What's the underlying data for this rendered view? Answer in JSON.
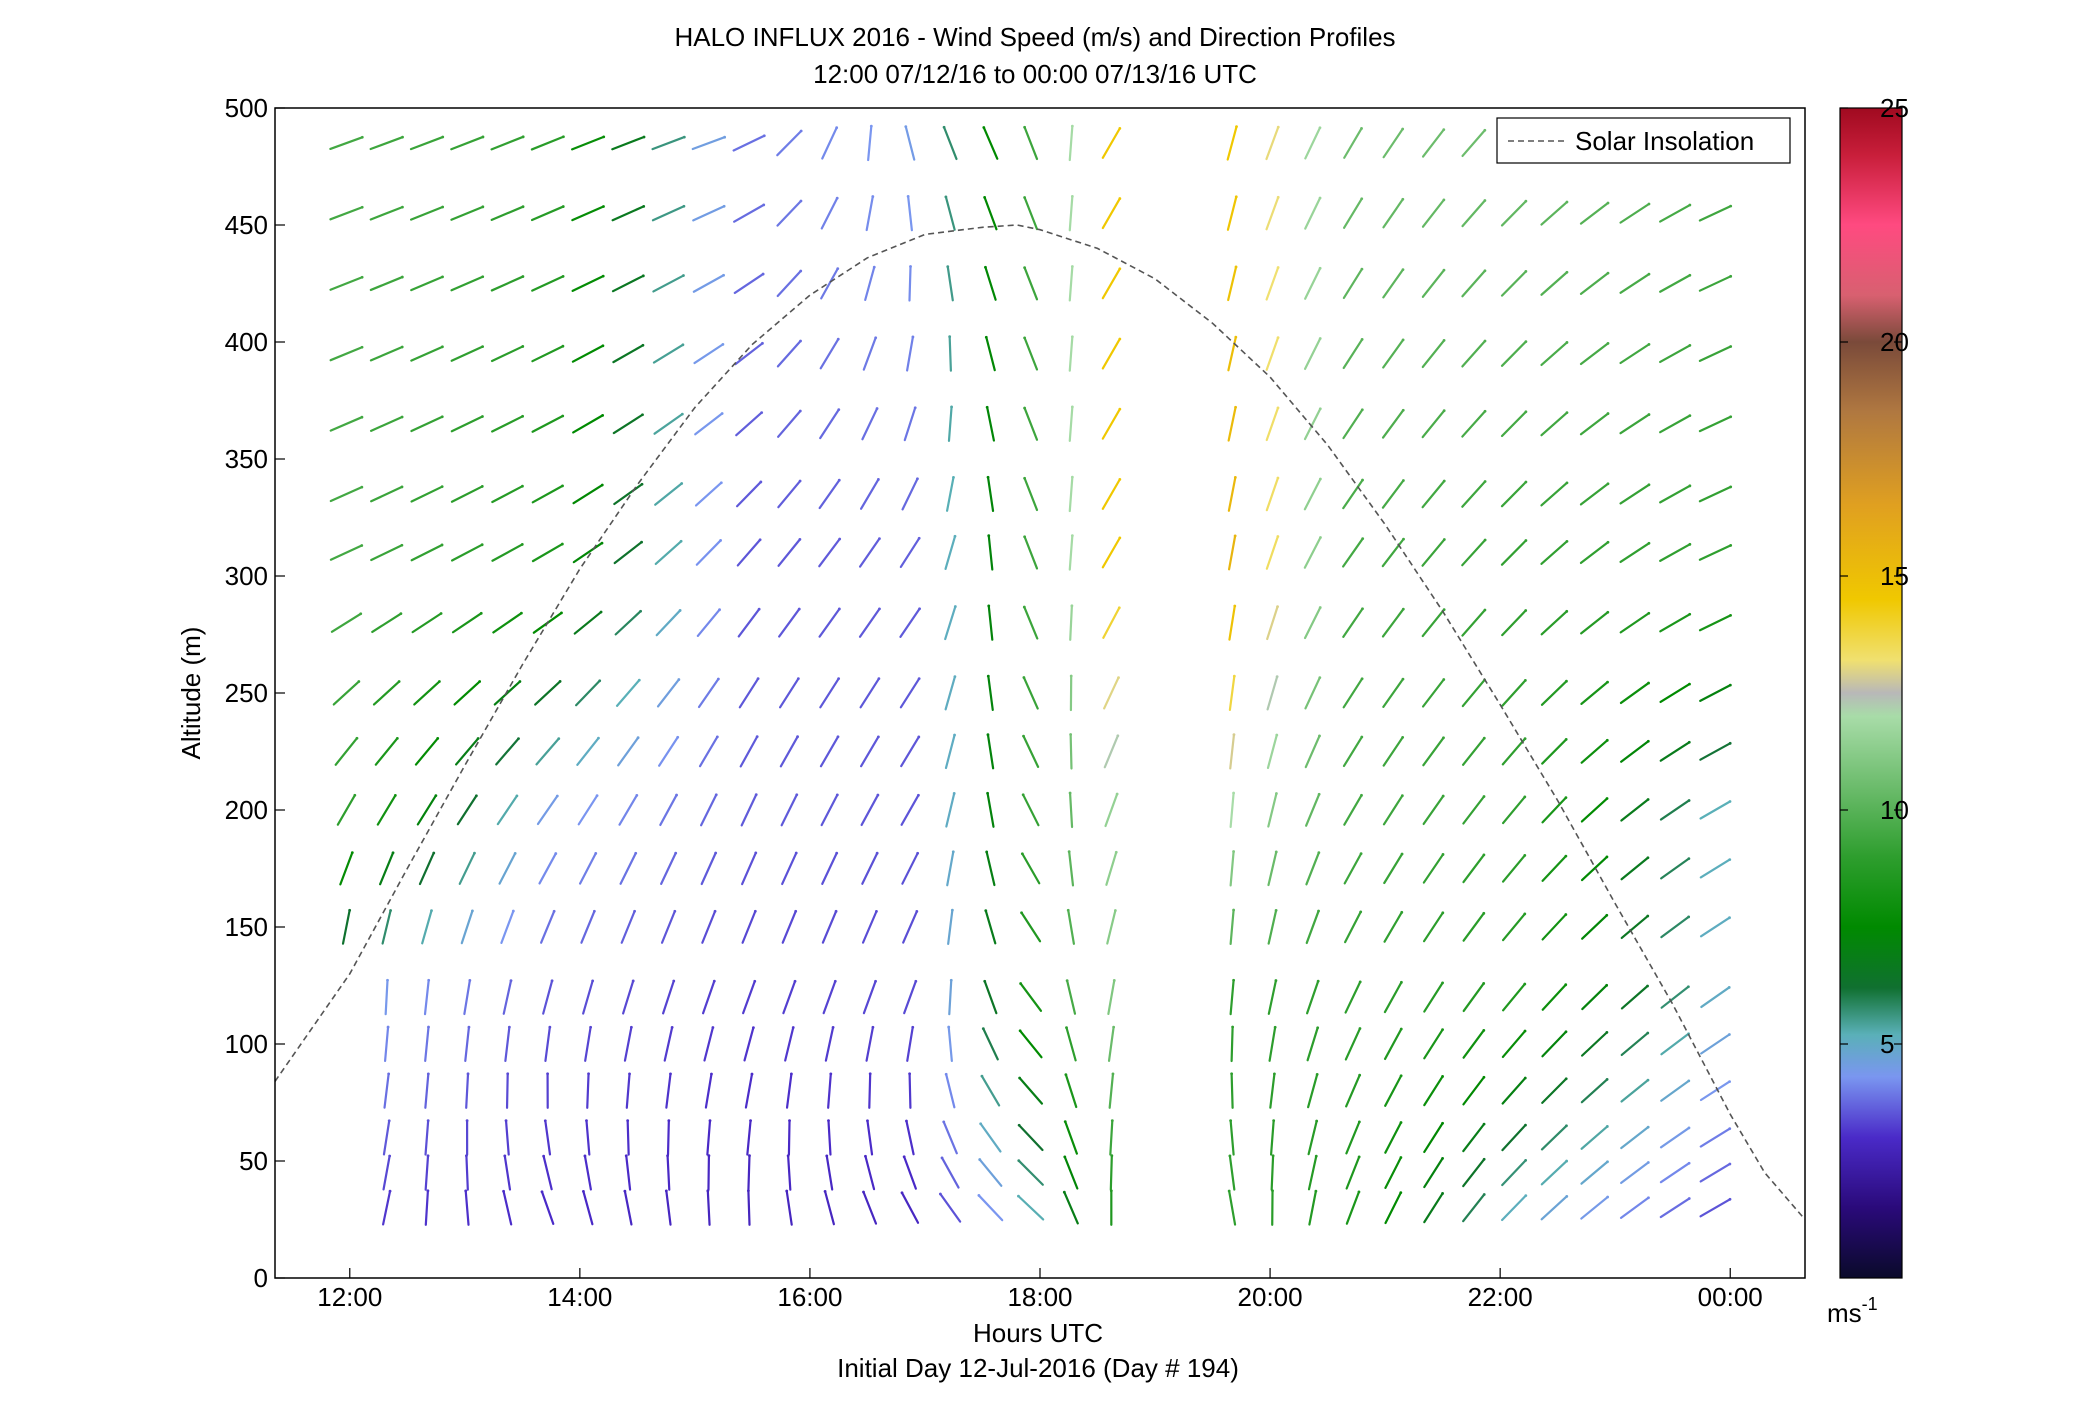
{
  "chart_data": {
    "type": "quiver",
    "title": "HALO INFLUX 2016 - Wind Speed (m/s) and Direction Profiles",
    "subtitle": "12:00 07/12/16 to 00:00 07/13/16  UTC",
    "xlabel": "Hours UTC",
    "xlabel2": "Initial Day 12-Jul-2016 (Day # 194)",
    "ylabel": "Altitude (m)",
    "xlim": [
      11.35,
      24.65
    ],
    "ylim": [
      0,
      500
    ],
    "xticks": [
      12,
      14,
      16,
      18,
      20,
      22,
      24
    ],
    "xtick_labels": [
      "12:00",
      "14:00",
      "16:00",
      "18:00",
      "20:00",
      "22:00",
      "00:00"
    ],
    "yticks": [
      0,
      50,
      100,
      150,
      200,
      250,
      300,
      350,
      400,
      450,
      500
    ],
    "ytick_labels": [
      "0",
      "50",
      "100",
      "150",
      "200",
      "250",
      "300",
      "350",
      "400",
      "450",
      "500"
    ],
    "grid": false,
    "legend": {
      "location": "top-right",
      "entries": [
        "Solar Insolation"
      ]
    },
    "colorbar": {
      "range": [
        0,
        25
      ],
      "ticks": [
        5,
        10,
        15,
        20,
        25
      ],
      "tick_labels": [
        "5",
        "10",
        "15",
        "20",
        "25"
      ],
      "unit": "ms",
      "unit_exp": "-1",
      "stops": [
        [
          0,
          "#0a0a2a"
        ],
        [
          1.5,
          "#2a0a7a"
        ],
        [
          3,
          "#4a2ac8"
        ],
        [
          4.3,
          "#7a96f0"
        ],
        [
          5.2,
          "#5ab0b8"
        ],
        [
          6.2,
          "#107030"
        ],
        [
          7.5,
          "#008a00"
        ],
        [
          9,
          "#2e9e2e"
        ],
        [
          10.5,
          "#6cbc6c"
        ],
        [
          12,
          "#a8dca8"
        ],
        [
          12.5,
          "#b8b8b8"
        ],
        [
          13.2,
          "#f0e070"
        ],
        [
          14.5,
          "#f0c800"
        ],
        [
          16.5,
          "#e0a020"
        ],
        [
          18.5,
          "#b07840"
        ],
        [
          20,
          "#7a4a3a"
        ],
        [
          21,
          "#d86070"
        ],
        [
          22.5,
          "#ff4a80"
        ],
        [
          24,
          "#c81e3a"
        ],
        [
          25,
          "#a00a20"
        ]
      ]
    },
    "solar_insolation": {
      "x": [
        11.35,
        12,
        12.5,
        13,
        13.5,
        14,
        14.5,
        15,
        15.5,
        16,
        16.5,
        17,
        17.5,
        17.8,
        18,
        18.5,
        19,
        19.5,
        20,
        20.5,
        21,
        21.5,
        22,
        22.5,
        23,
        23.5,
        24,
        24.3,
        24.65
      ],
      "y": [
        84,
        130,
        175,
        219,
        262,
        303,
        339,
        372,
        399,
        420,
        436,
        446,
        449,
        450,
        448,
        440,
        427,
        408,
        385,
        356,
        322,
        285,
        245,
        204,
        160,
        117,
        70,
        45,
        25
      ]
    },
    "times": [
      11.8,
      12.15,
      12.5,
      12.85,
      13.2,
      13.55,
      13.9,
      14.25,
      14.6,
      14.95,
      15.3,
      15.65,
      16.0,
      16.35,
      16.7,
      17.05,
      17.4,
      17.75,
      18.1,
      18.45,
      18.8,
      19.15,
      19.5,
      19.85,
      20.2,
      20.55,
      20.9,
      21.25,
      21.6,
      21.95,
      22.3,
      22.65,
      23.0,
      23.35,
      23.7
    ],
    "altitudes": [
      30,
      45,
      60,
      80,
      100,
      120,
      150,
      175,
      200,
      225,
      250,
      280,
      310,
      335,
      365,
      395,
      425,
      455,
      485
    ],
    "gaps": {
      "columns": [
        18.8,
        19.15
      ],
      "rows": [
        485
      ],
      "row_ranges": [
        [
          11.8,
          12.15,
          0,
          120
        ]
      ]
    },
    "hour_profiles": [
      {
        "hour": 11.8,
        "levels": {
          "30": [
            3.2,
            20
          ],
          "120": [
            4.6,
            0
          ],
          "200": [
            9.0,
            30
          ],
          "300": [
            9.5,
            65
          ],
          "485": [
            9.5,
            70
          ]
        }
      },
      {
        "hour": 13.5,
        "levels": {
          "30": [
            3.0,
            340
          ],
          "120": [
            3.5,
            15
          ],
          "200": [
            4.5,
            35
          ],
          "300": [
            8.5,
            60
          ],
          "485": [
            9.0,
            68
          ]
        }
      },
      {
        "hour": 15.2,
        "levels": {
          "30": [
            2.8,
            0
          ],
          "120": [
            3.2,
            20
          ],
          "200": [
            3.6,
            25
          ],
          "300": [
            3.5,
            40
          ],
          "485": [
            3.8,
            70
          ]
        }
      },
      {
        "hour": 16.8,
        "levels": {
          "30": [
            2.9,
            330
          ],
          "120": [
            3.4,
            20
          ],
          "200": [
            3.5,
            30
          ],
          "300": [
            3.6,
            35
          ],
          "485": [
            4.5,
            340
          ]
        }
      },
      {
        "hour": 17.7,
        "levels": {
          "30": [
            5.0,
            310
          ],
          "120": [
            8.0,
            320
          ],
          "200": [
            9.0,
            330
          ],
          "300": [
            9.0,
            335
          ],
          "485": [
            9.0,
            335
          ]
        }
      },
      {
        "hour": 18.45,
        "levels": {
          "30": [
            8.5,
            360
          ],
          "120": [
            11.0,
            10
          ],
          "200": [
            11.5,
            20
          ],
          "300": [
            14.5,
            30
          ],
          "485": [
            14.5,
            30
          ]
        }
      },
      {
        "hour": 19.5,
        "levels": {
          "30": [
            9.0,
            350
          ],
          "120": [
            9.0,
            5
          ],
          "200": [
            12.0,
            5
          ],
          "300": [
            15.5,
            10
          ],
          "485": [
            14.5,
            15
          ]
        }
      },
      {
        "hour": 20.5,
        "levels": {
          "30": [
            8.5,
            20
          ],
          "120": [
            9.0,
            25
          ],
          "200": [
            9.5,
            30
          ],
          "300": [
            9.5,
            35
          ],
          "485": [
            10.5,
            30
          ]
        }
      },
      {
        "hour": 22.0,
        "levels": {
          "30": [
            5.0,
            45
          ],
          "120": [
            8.5,
            40
          ],
          "200": [
            9.0,
            40
          ],
          "300": [
            9.0,
            45
          ],
          "485": [
            10.5,
            45
          ]
        }
      },
      {
        "hour": 23.7,
        "levels": {
          "30": [
            3.5,
            60
          ],
          "120": [
            5.0,
            55
          ],
          "200": [
            5.2,
            60
          ],
          "300": [
            9.0,
            65
          ],
          "485": [
            9.5,
            65
          ]
        }
      }
    ]
  }
}
